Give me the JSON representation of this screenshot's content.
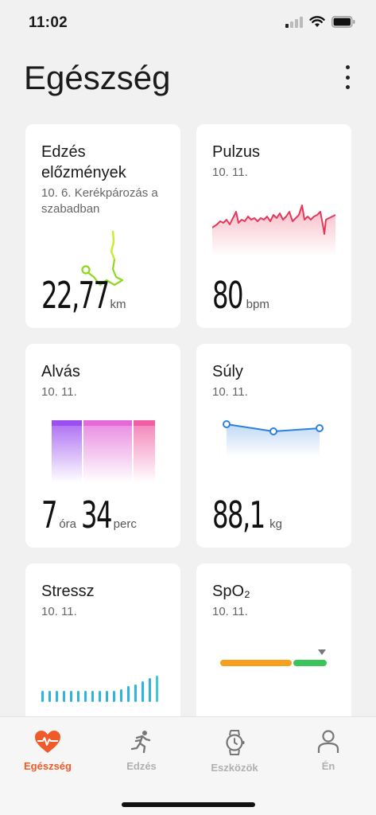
{
  "status_bar": {
    "time": "11:02"
  },
  "header": {
    "title": "Egészség"
  },
  "cards": {
    "workout": {
      "title": "Edzés előzmények",
      "subtitle": "10. 6. Kerékpározás a szabadban",
      "value": "22,77",
      "unit": "km"
    },
    "pulse": {
      "title": "Pulzus",
      "date": "10. 11.",
      "value": "80",
      "unit": "bpm"
    },
    "sleep": {
      "title": "Alvás",
      "date": "10. 11.",
      "hours": "7",
      "hours_unit": "óra",
      "minutes": "34",
      "minutes_unit": "perc"
    },
    "weight": {
      "title": "Súly",
      "date": "10. 11.",
      "value": "88,1",
      "unit": "kg"
    },
    "stress": {
      "title": "Stressz",
      "date": "10. 11."
    },
    "spo2": {
      "title": "SpO₂",
      "date": "10. 11."
    }
  },
  "bottom_nav": {
    "items": [
      {
        "label": "Egészség",
        "icon": "heart-pulse-icon",
        "active": true
      },
      {
        "label": "Edzés",
        "icon": "running-icon",
        "active": false
      },
      {
        "label": "Eszközök",
        "icon": "watch-icon",
        "active": false
      },
      {
        "label": "Én",
        "icon": "person-icon",
        "active": false
      }
    ]
  },
  "colors": {
    "accent": "#f05a29",
    "pulse_line": "#e8385a",
    "sleep_deep": "#9b4ff0",
    "sleep_light": "#e36ad8",
    "sleep_rem": "#f05fa4",
    "weight_line": "#2e7fe0",
    "stress_bar": "#2fb4e0",
    "spo2_orange": "#f7a01e",
    "spo2_green": "#3cc45a",
    "route_green": "#8ed81e"
  }
}
